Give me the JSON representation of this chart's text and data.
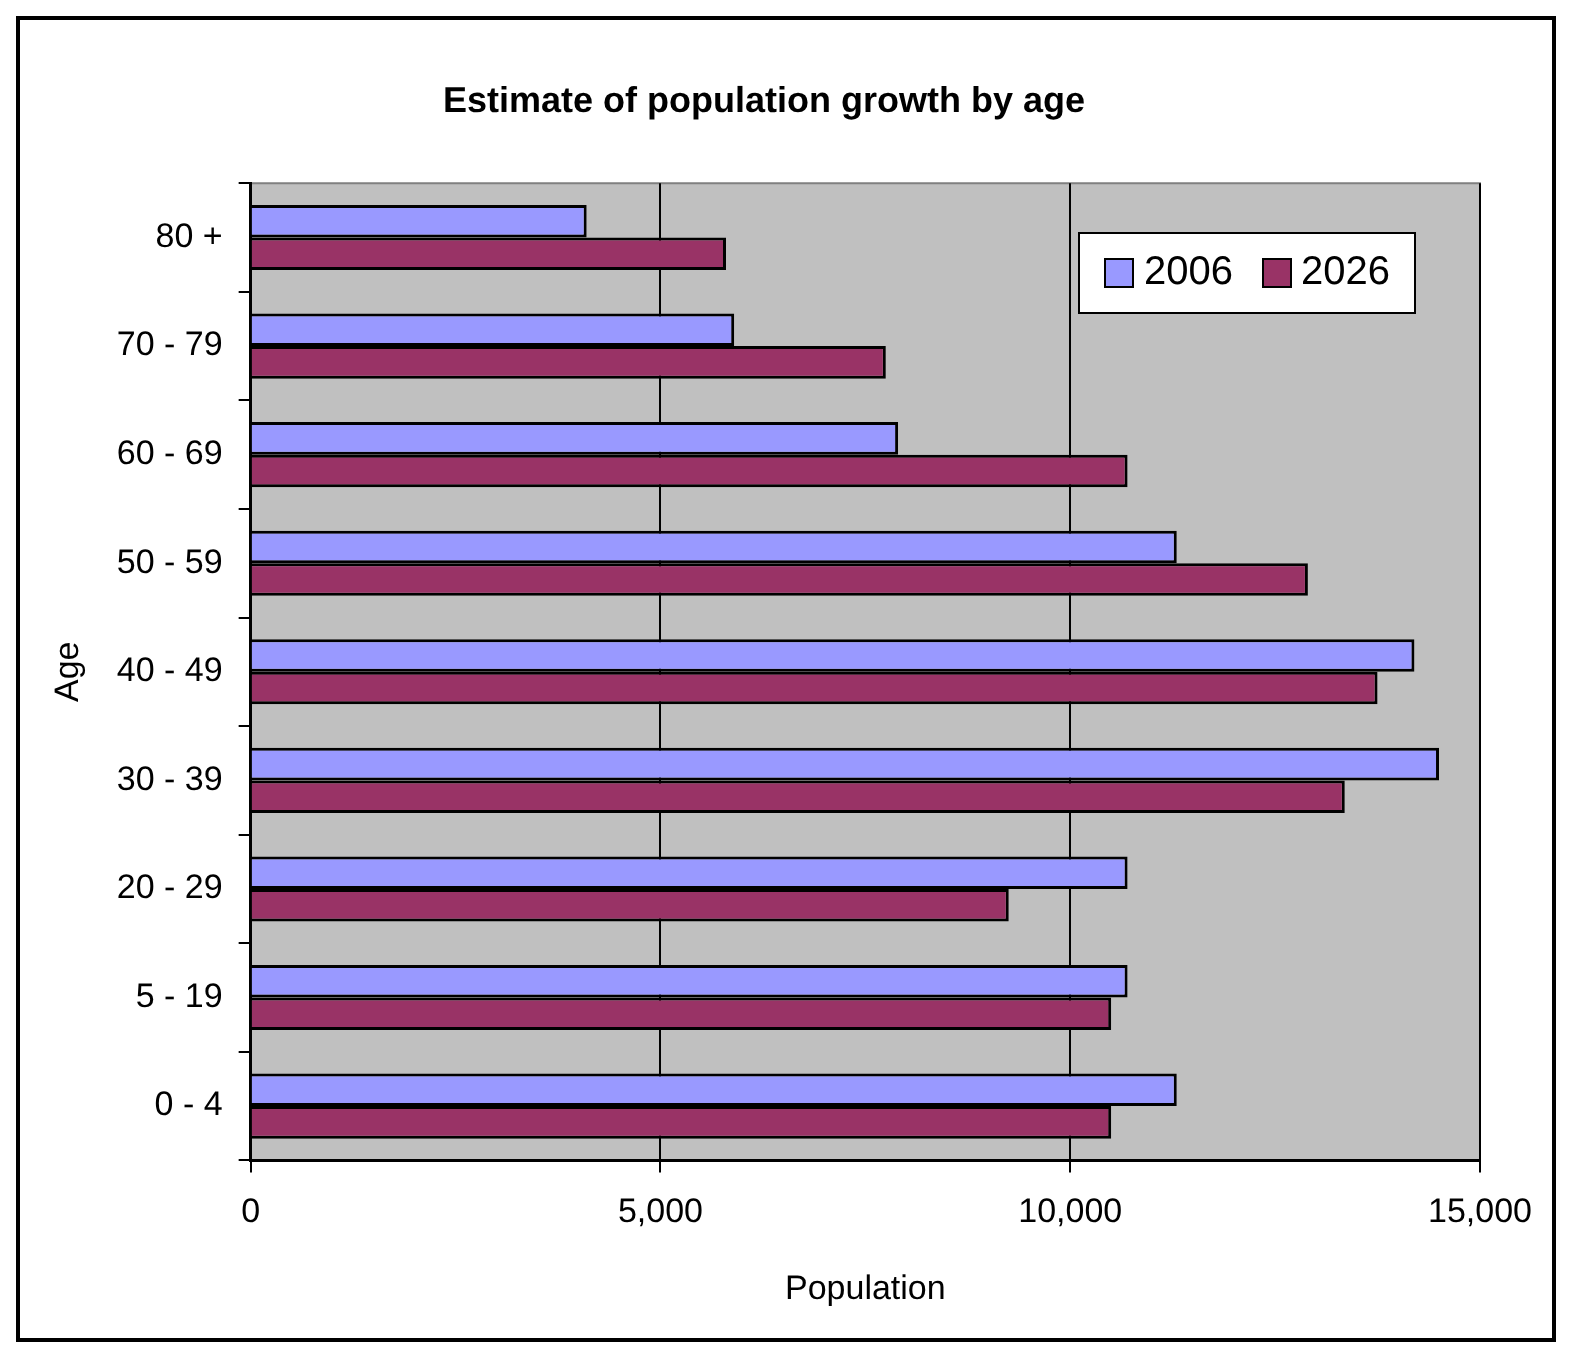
{
  "chart_data": {
    "type": "bar",
    "orientation": "horizontal",
    "title": "Estimate of population growth by age",
    "xlabel": "Population",
    "ylabel": "Age",
    "categories": [
      "80 +",
      "70 - 79",
      "60 - 69",
      "50 - 59",
      "40 - 49",
      "30 - 39",
      "20 - 29",
      "5 - 19",
      "0 - 4"
    ],
    "series": [
      {
        "name": "2006",
        "color": "#9999ff",
        "values": [
          4100,
          5900,
          7900,
          11300,
          14200,
          14500,
          10700,
          10700,
          11300
        ]
      },
      {
        "name": "2026",
        "color": "#993366",
        "values": [
          5800,
          7750,
          10700,
          12900,
          13750,
          13350,
          9250,
          10500,
          10500
        ]
      }
    ],
    "xlim": [
      0,
      15000
    ],
    "xticks": [
      {
        "value": 0,
        "label": "0"
      },
      {
        "value": 5000,
        "label": "5,000"
      },
      {
        "value": 10000,
        "label": "10,000"
      },
      {
        "value": 15000,
        "label": "15,000"
      }
    ],
    "grid": "x",
    "legend": "top right"
  }
}
